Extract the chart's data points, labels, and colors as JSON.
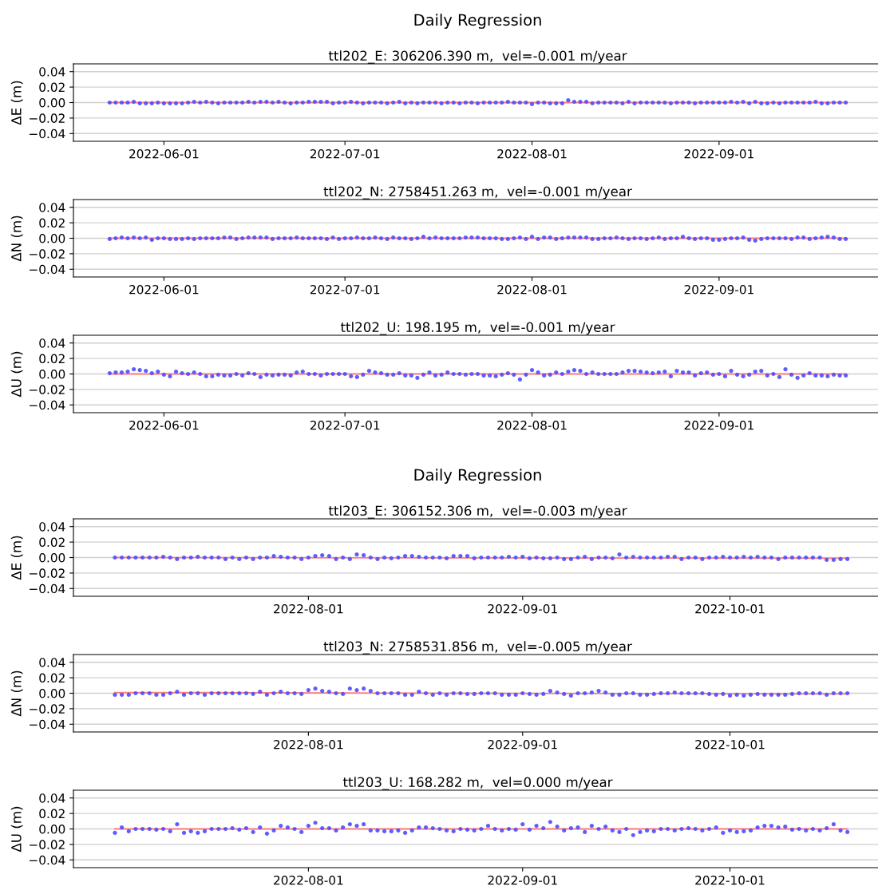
{
  "chart_data": [
    {
      "type": "scatter",
      "title": "Daily Regression",
      "subtitle": "ttl202_E: 306206.390 m,  vel=-0.001 m/year",
      "ylabel": "ΔE (m)",
      "grid": "y",
      "xlim": [
        "2022-05-17",
        "2022-09-28"
      ],
      "xticks": [
        "2022-06-01",
        "2022-07-01",
        "2022-08-01",
        "2022-09-01"
      ],
      "ylim": [
        -0.05,
        0.05
      ],
      "yticks": [
        {
          "value": -0.04,
          "label": "−0.04"
        },
        {
          "value": -0.02,
          "label": "−0.02"
        },
        {
          "value": 0,
          "label": "0.00"
        },
        {
          "value": 0.02,
          "label": "0.02"
        },
        {
          "value": 0.04,
          "label": "0.04"
        }
      ],
      "x": [
        "2022-05-23",
        "2022-05-24",
        "2022-05-25",
        "2022-05-26",
        "2022-05-27",
        "2022-05-28",
        "2022-05-29",
        "2022-05-30",
        "2022-05-31",
        "2022-06-01",
        "2022-06-02",
        "2022-06-03",
        "2022-06-04",
        "2022-06-05",
        "2022-06-06",
        "2022-06-07",
        "2022-06-08",
        "2022-06-09",
        "2022-06-10",
        "2022-06-11",
        "2022-06-12",
        "2022-06-13",
        "2022-06-14",
        "2022-06-15",
        "2022-06-16",
        "2022-06-17",
        "2022-06-18",
        "2022-06-19",
        "2022-06-20",
        "2022-06-21",
        "2022-06-22",
        "2022-06-23",
        "2022-06-24",
        "2022-06-25",
        "2022-06-26",
        "2022-06-27",
        "2022-06-28",
        "2022-06-29",
        "2022-06-30",
        "2022-07-01",
        "2022-07-02",
        "2022-07-03",
        "2022-07-04",
        "2022-07-05",
        "2022-07-06",
        "2022-07-07",
        "2022-07-08",
        "2022-07-09",
        "2022-07-10",
        "2022-07-11",
        "2022-07-12",
        "2022-07-13",
        "2022-07-14",
        "2022-07-15",
        "2022-07-16",
        "2022-07-17",
        "2022-07-18",
        "2022-07-19",
        "2022-07-20",
        "2022-07-21",
        "2022-07-22",
        "2022-07-23",
        "2022-07-24",
        "2022-07-25",
        "2022-07-26",
        "2022-07-27",
        "2022-07-28",
        "2022-07-29",
        "2022-07-30",
        "2022-07-31",
        "2022-08-01",
        "2022-08-02",
        "2022-08-03",
        "2022-08-04",
        "2022-08-05",
        "2022-08-06",
        "2022-08-07",
        "2022-08-08",
        "2022-08-09",
        "2022-08-10",
        "2022-08-11",
        "2022-08-12",
        "2022-08-13",
        "2022-08-14",
        "2022-08-15",
        "2022-08-16",
        "2022-08-17",
        "2022-08-18",
        "2022-08-19",
        "2022-08-20",
        "2022-08-21",
        "2022-08-22",
        "2022-08-23",
        "2022-08-24",
        "2022-08-25",
        "2022-08-26",
        "2022-08-27",
        "2022-08-28",
        "2022-08-29",
        "2022-08-30",
        "2022-08-31",
        "2022-09-01",
        "2022-09-02",
        "2022-09-03",
        "2022-09-04",
        "2022-09-05",
        "2022-09-06",
        "2022-09-07",
        "2022-09-08",
        "2022-09-09",
        "2022-09-10",
        "2022-09-11",
        "2022-09-12",
        "2022-09-13",
        "2022-09-14",
        "2022-09-15",
        "2022-09-16",
        "2022-09-17",
        "2022-09-18",
        "2022-09-19",
        "2022-09-20",
        "2022-09-21",
        "2022-09-22"
      ],
      "series": [
        {
          "type": "line",
          "color": "#ff7f7f",
          "x": [
            "2022-05-23",
            "2022-09-22"
          ],
          "values": [
            0,
            0
          ]
        },
        {
          "color": "#4d4dff",
          "marker": "circle",
          "values": [
            0,
            0,
            0,
            0,
            0.001,
            -0.001,
            -0.001,
            -0.001,
            0,
            -0.001,
            -0.001,
            -0.001,
            -0.001,
            0,
            0.001,
            0,
            0.001,
            0,
            -0.001,
            0,
            0,
            0,
            0,
            0.001,
            0,
            0.001,
            0.001,
            0,
            0.001,
            0,
            -0.001,
            0,
            0,
            0.001,
            0.001,
            0.001,
            0.001,
            -0.001,
            0,
            0,
            0.001,
            0,
            -0.001,
            0,
            0,
            0,
            -0.001,
            0,
            0.001,
            -0.001,
            0,
            -0.001,
            0,
            0,
            0,
            -0.001,
            0,
            0,
            -0.001,
            0,
            0,
            -0.001,
            0,
            0,
            0,
            0,
            0.001,
            0,
            0,
            0,
            -0.002,
            0,
            0,
            -0.001,
            -0.001,
            -0.001,
            0.003,
            0.001,
            0.001,
            0.001,
            -0.001,
            0,
            0,
            0,
            0,
            -0.001,
            0.001,
            -0.001,
            0,
            0,
            0,
            0,
            0,
            -0.001,
            0,
            0,
            0,
            -0.001,
            0,
            0,
            0,
            0,
            0,
            0.001,
            0,
            0.001,
            -0.001,
            0.001,
            -0.001,
            -0.001,
            0,
            -0.001,
            0,
            0,
            0,
            0,
            0,
            0.001,
            -0.001,
            -0.001,
            0,
            0,
            0
          ]
        }
      ]
    },
    {
      "type": "scatter",
      "subtitle": "ttl202_N: 2758451.263 m,  vel=-0.001 m/year",
      "ylabel": "ΔN (m)",
      "grid": "y",
      "xlim": [
        "2022-05-17",
        "2022-09-28"
      ],
      "xticks": [
        "2022-06-01",
        "2022-07-01",
        "2022-08-01",
        "2022-09-01"
      ],
      "ylim": [
        -0.05,
        0.05
      ],
      "yticks": [
        {
          "value": -0.04,
          "label": "−0.04"
        },
        {
          "value": -0.02,
          "label": "−0.02"
        },
        {
          "value": 0,
          "label": "0.00"
        },
        {
          "value": 0.02,
          "label": "0.02"
        },
        {
          "value": 0.04,
          "label": "0.04"
        }
      ],
      "x": [
        "2022-05-23",
        "2022-05-24",
        "2022-05-25",
        "2022-05-26",
        "2022-05-27",
        "2022-05-28",
        "2022-05-29",
        "2022-05-30",
        "2022-05-31",
        "2022-06-01",
        "2022-06-02",
        "2022-06-03",
        "2022-06-04",
        "2022-06-05",
        "2022-06-06",
        "2022-06-07",
        "2022-06-08",
        "2022-06-09",
        "2022-06-10",
        "2022-06-11",
        "2022-06-12",
        "2022-06-13",
        "2022-06-14",
        "2022-06-15",
        "2022-06-16",
        "2022-06-17",
        "2022-06-18",
        "2022-06-19",
        "2022-06-20",
        "2022-06-21",
        "2022-06-22",
        "2022-06-23",
        "2022-06-24",
        "2022-06-25",
        "2022-06-26",
        "2022-06-27",
        "2022-06-28",
        "2022-06-29",
        "2022-06-30",
        "2022-07-01",
        "2022-07-02",
        "2022-07-03",
        "2022-07-04",
        "2022-07-05",
        "2022-07-06",
        "2022-07-07",
        "2022-07-08",
        "2022-07-09",
        "2022-07-10",
        "2022-07-11",
        "2022-07-12",
        "2022-07-13",
        "2022-07-14",
        "2022-07-15",
        "2022-07-16",
        "2022-07-17",
        "2022-07-18",
        "2022-07-19",
        "2022-07-20",
        "2022-07-21",
        "2022-07-22",
        "2022-07-23",
        "2022-07-24",
        "2022-07-25",
        "2022-07-26",
        "2022-07-27",
        "2022-07-28",
        "2022-07-29",
        "2022-07-30",
        "2022-07-31",
        "2022-08-01",
        "2022-08-02",
        "2022-08-03",
        "2022-08-04",
        "2022-08-05",
        "2022-08-06",
        "2022-08-07",
        "2022-08-08",
        "2022-08-09",
        "2022-08-10",
        "2022-08-11",
        "2022-08-12",
        "2022-08-13",
        "2022-08-14",
        "2022-08-15",
        "2022-08-16",
        "2022-08-17",
        "2022-08-18",
        "2022-08-19",
        "2022-08-20",
        "2022-08-21",
        "2022-08-22",
        "2022-08-23",
        "2022-08-24",
        "2022-08-25",
        "2022-08-26",
        "2022-08-27",
        "2022-08-28",
        "2022-08-29",
        "2022-08-30",
        "2022-08-31",
        "2022-09-01",
        "2022-09-02",
        "2022-09-03",
        "2022-09-04",
        "2022-09-05",
        "2022-09-06",
        "2022-09-07",
        "2022-09-08",
        "2022-09-09",
        "2022-09-10",
        "2022-09-11",
        "2022-09-12",
        "2022-09-13",
        "2022-09-14",
        "2022-09-15",
        "2022-09-16",
        "2022-09-17",
        "2022-09-18",
        "2022-09-19",
        "2022-09-20",
        "2022-09-21",
        "2022-09-22"
      ],
      "series": [
        {
          "type": "line",
          "color": "#ff7f7f",
          "x": [
            "2022-05-23",
            "2022-09-22"
          ],
          "values": [
            0,
            0
          ]
        },
        {
          "color": "#4d4dff",
          "marker": "circle",
          "values": [
            -0.001,
            0,
            0.001,
            0,
            0.001,
            0,
            0.001,
            -0.002,
            0,
            0,
            -0.001,
            -0.001,
            -0.001,
            0,
            -0.001,
            0,
            0,
            0,
            0,
            0.001,
            0.001,
            -0.001,
            0,
            0.001,
            0.001,
            0.001,
            0.001,
            -0.001,
            0,
            0,
            0,
            0.001,
            0,
            0,
            0,
            0,
            -0.001,
            0.001,
            -0.001,
            0,
            0,
            0.001,
            0,
            0,
            0.001,
            0,
            -0.001,
            0.001,
            0,
            0,
            -0.001,
            0,
            0.002,
            0,
            0.001,
            0,
            0,
            0,
            0,
            0.001,
            0.001,
            0.001,
            0,
            0,
            0,
            -0.001,
            -0.001,
            0,
            0.001,
            -0.001,
            0.002,
            -0.001,
            0.001,
            0.001,
            -0.001,
            0,
            0.001,
            0.001,
            0.001,
            0.001,
            -0.001,
            -0.001,
            0,
            0,
            0.001,
            0,
            -0.001,
            0,
            0,
            -0.001,
            0,
            0.001,
            -0.001,
            0,
            0,
            0.002,
            0,
            -0.001,
            0,
            0,
            -0.002,
            -0.002,
            -0.001,
            0,
            0,
            0.001,
            -0.002,
            -0.003,
            -0.001,
            0,
            0,
            0,
            0,
            -0.001,
            0.001,
            0.001,
            -0.001,
            0,
            0.001,
            0.002,
            0.001,
            -0.001,
            -0.001
          ]
        }
      ]
    },
    {
      "type": "scatter",
      "subtitle": "ttl202_U: 198.195 m,  vel=-0.001 m/year",
      "ylabel": "ΔU (m)",
      "grid": "y",
      "xlim": [
        "2022-05-17",
        "2022-09-28"
      ],
      "xticks": [
        "2022-06-01",
        "2022-07-01",
        "2022-08-01",
        "2022-09-01"
      ],
      "ylim": [
        -0.05,
        0.05
      ],
      "yticks": [
        {
          "value": -0.04,
          "label": "−0.04"
        },
        {
          "value": -0.02,
          "label": "−0.02"
        },
        {
          "value": 0,
          "label": "0.00"
        },
        {
          "value": 0.02,
          "label": "0.02"
        },
        {
          "value": 0.04,
          "label": "0.04"
        }
      ],
      "x": [
        "2022-05-23",
        "2022-05-24",
        "2022-05-25",
        "2022-05-26",
        "2022-05-27",
        "2022-05-28",
        "2022-05-29",
        "2022-05-30",
        "2022-05-31",
        "2022-06-01",
        "2022-06-02",
        "2022-06-03",
        "2022-06-04",
        "2022-06-05",
        "2022-06-06",
        "2022-06-07",
        "2022-06-08",
        "2022-06-09",
        "2022-06-10",
        "2022-06-11",
        "2022-06-12",
        "2022-06-13",
        "2022-06-14",
        "2022-06-15",
        "2022-06-16",
        "2022-06-17",
        "2022-06-18",
        "2022-06-19",
        "2022-06-20",
        "2022-06-21",
        "2022-06-22",
        "2022-06-23",
        "2022-06-24",
        "2022-06-25",
        "2022-06-26",
        "2022-06-27",
        "2022-06-28",
        "2022-06-29",
        "2022-06-30",
        "2022-07-01",
        "2022-07-02",
        "2022-07-03",
        "2022-07-04",
        "2022-07-05",
        "2022-07-06",
        "2022-07-07",
        "2022-07-08",
        "2022-07-09",
        "2022-07-10",
        "2022-07-11",
        "2022-07-12",
        "2022-07-13",
        "2022-07-14",
        "2022-07-15",
        "2022-07-16",
        "2022-07-17",
        "2022-07-18",
        "2022-07-19",
        "2022-07-20",
        "2022-07-21",
        "2022-07-22",
        "2022-07-23",
        "2022-07-24",
        "2022-07-25",
        "2022-07-26",
        "2022-07-27",
        "2022-07-28",
        "2022-07-29",
        "2022-07-30",
        "2022-07-31",
        "2022-08-01",
        "2022-08-02",
        "2022-08-03",
        "2022-08-04",
        "2022-08-05",
        "2022-08-06",
        "2022-08-07",
        "2022-08-08",
        "2022-08-09",
        "2022-08-10",
        "2022-08-11",
        "2022-08-12",
        "2022-08-13",
        "2022-08-14",
        "2022-08-15",
        "2022-08-16",
        "2022-08-17",
        "2022-08-18",
        "2022-08-19",
        "2022-08-20",
        "2022-08-21",
        "2022-08-22",
        "2022-08-23",
        "2022-08-24",
        "2022-08-25",
        "2022-08-26",
        "2022-08-27",
        "2022-08-28",
        "2022-08-29",
        "2022-08-30",
        "2022-08-31",
        "2022-09-01",
        "2022-09-02",
        "2022-09-03",
        "2022-09-04",
        "2022-09-05",
        "2022-09-06",
        "2022-09-07",
        "2022-09-08",
        "2022-09-09",
        "2022-09-10",
        "2022-09-11",
        "2022-09-12",
        "2022-09-13",
        "2022-09-14",
        "2022-09-15",
        "2022-09-16",
        "2022-09-17",
        "2022-09-18",
        "2022-09-19",
        "2022-09-20",
        "2022-09-21",
        "2022-09-22"
      ],
      "series": [
        {
          "type": "line",
          "color": "#ff7f7f",
          "x": [
            "2022-05-23",
            "2022-09-22"
          ],
          "values": [
            0,
            0
          ]
        },
        {
          "color": "#4d4dff",
          "marker": "circle",
          "values": [
            0.001,
            0.002,
            0.002,
            0.003,
            0.006,
            0.005,
            0.004,
            0.001,
            0.003,
            -0.001,
            -0.003,
            0.003,
            0.001,
            0,
            0.002,
            0,
            -0.003,
            -0.003,
            -0.001,
            -0.002,
            -0.002,
            0,
            -0.002,
            0.001,
            0,
            -0.004,
            -0.001,
            -0.002,
            -0.001,
            -0.001,
            -0.002,
            0.002,
            0.003,
            0,
            0,
            -0.002,
            0,
            0,
            0,
            0,
            -0.003,
            -0.004,
            -0.001,
            0.004,
            0.002,
            0.001,
            -0.001,
            -0.001,
            0.001,
            -0.002,
            -0.002,
            -0.005,
            -0.001,
            0.002,
            -0.002,
            -0.001,
            0.002,
            0,
            0,
            -0.001,
            0,
            0,
            -0.002,
            -0.002,
            -0.003,
            -0.001,
            0.001,
            -0.001,
            -0.007,
            -0.001,
            0.005,
            0.002,
            -0.002,
            -0.001,
            0.002,
            0,
            0.003,
            0.005,
            0.004,
            0,
            0.002,
            0,
            0,
            0,
            0,
            0.002,
            0.004,
            0.004,
            0.003,
            0.002,
            0.001,
            0.002,
            0.003,
            -0.003,
            0.004,
            0.002,
            0.002,
            -0.002,
            0.001,
            0.002,
            -0.001,
            0,
            -0.003,
            0.004,
            -0.001,
            -0.003,
            -0.001,
            0.003,
            0.004,
            -0.002,
            0,
            -0.004,
            0.006,
            -0.001,
            -0.005,
            -0.002,
            0.001,
            -0.002,
            -0.002,
            -0.003,
            -0.001,
            -0.002,
            -0.002
          ]
        }
      ]
    },
    {
      "type": "scatter",
      "title": "Daily Regression",
      "subtitle": "ttl203_E: 306152.306 m,  vel=-0.003 m/year",
      "ylabel": "ΔE (m)",
      "grid": "y",
      "xlim": [
        "2022-06-28",
        "2022-10-23"
      ],
      "xticks": [
        "2022-08-01",
        "2022-09-01",
        "2022-10-01"
      ],
      "ylim": [
        -0.05,
        0.05
      ],
      "yticks": [
        {
          "value": -0.04,
          "label": "−0.04"
        },
        {
          "value": -0.02,
          "label": "−0.02"
        },
        {
          "value": 0,
          "label": "0.00"
        },
        {
          "value": 0.02,
          "label": "0.02"
        },
        {
          "value": 0.04,
          "label": "0.04"
        }
      ],
      "x": [
        "2022-07-04",
        "2022-07-05",
        "2022-07-06",
        "2022-07-07",
        "2022-07-08",
        "2022-07-09",
        "2022-07-10",
        "2022-07-11",
        "2022-07-12",
        "2022-07-13",
        "2022-07-14",
        "2022-07-15",
        "2022-07-16",
        "2022-07-17",
        "2022-07-18",
        "2022-07-19",
        "2022-07-20",
        "2022-07-21",
        "2022-07-22",
        "2022-07-23",
        "2022-07-24",
        "2022-07-25",
        "2022-07-26",
        "2022-07-27",
        "2022-07-28",
        "2022-07-29",
        "2022-07-30",
        "2022-07-31",
        "2022-08-01",
        "2022-08-02",
        "2022-08-03",
        "2022-08-04",
        "2022-08-05",
        "2022-08-06",
        "2022-08-07",
        "2022-08-08",
        "2022-08-09",
        "2022-08-10",
        "2022-08-11",
        "2022-08-12",
        "2022-08-13",
        "2022-08-14",
        "2022-08-15",
        "2022-08-16",
        "2022-08-17",
        "2022-08-18",
        "2022-08-19",
        "2022-08-20",
        "2022-08-21",
        "2022-08-22",
        "2022-08-23",
        "2022-08-24",
        "2022-08-25",
        "2022-08-26",
        "2022-08-27",
        "2022-08-28",
        "2022-08-29",
        "2022-08-30",
        "2022-08-31",
        "2022-09-01",
        "2022-09-02",
        "2022-09-03",
        "2022-09-04",
        "2022-09-05",
        "2022-09-06",
        "2022-09-07",
        "2022-09-08",
        "2022-09-09",
        "2022-09-10",
        "2022-09-11",
        "2022-09-12",
        "2022-09-13",
        "2022-09-14",
        "2022-09-15",
        "2022-09-16",
        "2022-09-17",
        "2022-09-18",
        "2022-09-19",
        "2022-09-20",
        "2022-09-21",
        "2022-09-22",
        "2022-09-23",
        "2022-09-24",
        "2022-09-25",
        "2022-09-26",
        "2022-09-27",
        "2022-09-28",
        "2022-09-29",
        "2022-09-30",
        "2022-10-01",
        "2022-10-02",
        "2022-10-03",
        "2022-10-04",
        "2022-10-05",
        "2022-10-06",
        "2022-10-07",
        "2022-10-08",
        "2022-10-09",
        "2022-10-10",
        "2022-10-11",
        "2022-10-12",
        "2022-10-13",
        "2022-10-14",
        "2022-10-15",
        "2022-10-16",
        "2022-10-17",
        "2022-10-18"
      ],
      "series": [
        {
          "type": "line",
          "color": "#ff7f7f",
          "x": [
            "2022-07-04",
            "2022-10-18"
          ],
          "values": [
            0,
            -0.001
          ]
        },
        {
          "color": "#4d4dff",
          "marker": "circle",
          "values": [
            0,
            0,
            0,
            0,
            0,
            0,
            0,
            0.001,
            0,
            -0.002,
            0,
            0,
            0.001,
            0,
            0,
            0,
            -0.002,
            0,
            -0.002,
            0,
            -0.002,
            0,
            0,
            0.002,
            0.001,
            0,
            0,
            -0.002,
            0,
            0.002,
            0.003,
            0.002,
            -0.002,
            0,
            -0.002,
            0.004,
            0.003,
            0,
            -0.002,
            0,
            -0.001,
            0,
            0.002,
            0.002,
            0.001,
            0,
            0,
            0,
            -0.001,
            0.002,
            0.002,
            0.002,
            -0.001,
            0,
            0,
            0,
            0,
            0.001,
            0,
            0.001,
            -0.001,
            0,
            -0.001,
            -0.001,
            0,
            -0.002,
            -0.002,
            0,
            0.001,
            -0.002,
            0,
            0,
            -0.001,
            0.004,
            0,
            0.001,
            0,
            0,
            0,
            0,
            0.001,
            0.001,
            -0.002,
            0,
            0,
            -0.002,
            0,
            0,
            0.001,
            0,
            0,
            0.001,
            0,
            0.001,
            0,
            0,
            -0.002,
            0,
            0,
            0,
            0,
            0,
            0,
            -0.003,
            -0.003,
            -0.002,
            -0.002
          ]
        }
      ]
    },
    {
      "type": "scatter",
      "subtitle": "ttl203_N: 2758531.856 m,  vel=-0.005 m/year",
      "ylabel": "ΔN (m)",
      "grid": "y",
      "xlim": [
        "2022-06-28",
        "2022-10-23"
      ],
      "xticks": [
        "2022-08-01",
        "2022-09-01",
        "2022-10-01"
      ],
      "ylim": [
        -0.05,
        0.05
      ],
      "yticks": [
        {
          "value": -0.04,
          "label": "−0.04"
        },
        {
          "value": -0.02,
          "label": "−0.02"
        },
        {
          "value": 0,
          "label": "0.00"
        },
        {
          "value": 0.02,
          "label": "0.02"
        },
        {
          "value": 0.04,
          "label": "0.04"
        }
      ],
      "x": [
        "2022-07-04",
        "2022-07-05",
        "2022-07-06",
        "2022-07-07",
        "2022-07-08",
        "2022-07-09",
        "2022-07-10",
        "2022-07-11",
        "2022-07-12",
        "2022-07-13",
        "2022-07-14",
        "2022-07-15",
        "2022-07-16",
        "2022-07-17",
        "2022-07-18",
        "2022-07-19",
        "2022-07-20",
        "2022-07-21",
        "2022-07-22",
        "2022-07-23",
        "2022-07-24",
        "2022-07-25",
        "2022-07-26",
        "2022-07-27",
        "2022-07-28",
        "2022-07-29",
        "2022-07-30",
        "2022-07-31",
        "2022-08-01",
        "2022-08-02",
        "2022-08-03",
        "2022-08-04",
        "2022-08-05",
        "2022-08-06",
        "2022-08-07",
        "2022-08-08",
        "2022-08-09",
        "2022-08-10",
        "2022-08-11",
        "2022-08-12",
        "2022-08-13",
        "2022-08-14",
        "2022-08-15",
        "2022-08-16",
        "2022-08-17",
        "2022-08-18",
        "2022-08-19",
        "2022-08-20",
        "2022-08-21",
        "2022-08-22",
        "2022-08-23",
        "2022-08-24",
        "2022-08-25",
        "2022-08-26",
        "2022-08-27",
        "2022-08-28",
        "2022-08-29",
        "2022-08-30",
        "2022-08-31",
        "2022-09-01",
        "2022-09-02",
        "2022-09-03",
        "2022-09-04",
        "2022-09-05",
        "2022-09-06",
        "2022-09-07",
        "2022-09-08",
        "2022-09-09",
        "2022-09-10",
        "2022-09-11",
        "2022-09-12",
        "2022-09-13",
        "2022-09-14",
        "2022-09-15",
        "2022-09-16",
        "2022-09-17",
        "2022-09-18",
        "2022-09-19",
        "2022-09-20",
        "2022-09-21",
        "2022-09-22",
        "2022-09-23",
        "2022-09-24",
        "2022-09-25",
        "2022-09-26",
        "2022-09-27",
        "2022-09-28",
        "2022-09-29",
        "2022-09-30",
        "2022-10-01",
        "2022-10-02",
        "2022-10-03",
        "2022-10-04",
        "2022-10-05",
        "2022-10-06",
        "2022-10-07",
        "2022-10-08",
        "2022-10-09",
        "2022-10-10",
        "2022-10-11",
        "2022-10-12",
        "2022-10-13",
        "2022-10-14",
        "2022-10-15",
        "2022-10-16",
        "2022-10-17",
        "2022-10-18"
      ],
      "series": [
        {
          "type": "line",
          "color": "#ff7f7f",
          "x": [
            "2022-07-04",
            "2022-10-18"
          ],
          "values": [
            0.001,
            -0.001
          ]
        },
        {
          "color": "#4d4dff",
          "marker": "circle",
          "values": [
            -0.002,
            -0.002,
            -0.002,
            0,
            0,
            0,
            -0.002,
            -0.002,
            0,
            0.002,
            -0.002,
            0,
            0,
            -0.002,
            0,
            0,
            0,
            0,
            0,
            0,
            -0.001,
            0.002,
            -0.002,
            0,
            0.002,
            0,
            0,
            -0.001,
            0.004,
            0.006,
            0.003,
            0.002,
            0,
            -0.001,
            0.006,
            0.004,
            0.006,
            0.003,
            0,
            0,
            0,
            0,
            -0.002,
            -0.002,
            0.002,
            0,
            -0.002,
            0,
            -0.002,
            0,
            0,
            -0.001,
            -0.001,
            0,
            0,
            0,
            -0.002,
            -0.002,
            -0.002,
            0,
            -0.001,
            -0.002,
            -0.001,
            0.003,
            0.001,
            -0.001,
            -0.003,
            0,
            0,
            0.001,
            0.003,
            0.001,
            -0.002,
            -0.002,
            0,
            0,
            -0.002,
            -0.002,
            -0.001,
            0,
            0,
            0.001,
            0,
            0,
            0,
            0,
            -0.001,
            -0.002,
            -0.001,
            -0.003,
            -0.002,
            -0.003,
            -0.002,
            -0.001,
            -0.002,
            -0.002,
            -0.002,
            -0.002,
            -0.001,
            0,
            0,
            0,
            0,
            -0.002,
            0,
            0,
            0
          ]
        }
      ]
    },
    {
      "type": "scatter",
      "subtitle": "ttl203_U: 168.282 m,  vel=0.000 m/year",
      "ylabel": "ΔU (m)",
      "grid": "y",
      "xlim": [
        "2022-06-28",
        "2022-10-23"
      ],
      "xticks": [
        "2022-08-01",
        "2022-09-01",
        "2022-10-01"
      ],
      "ylim": [
        -0.05,
        0.05
      ],
      "yticks": [
        {
          "value": -0.04,
          "label": "−0.04"
        },
        {
          "value": -0.02,
          "label": "−0.02"
        },
        {
          "value": 0,
          "label": "0.00"
        },
        {
          "value": 0.02,
          "label": "0.02"
        },
        {
          "value": 0.04,
          "label": "0.04"
        }
      ],
      "x": [
        "2022-07-04",
        "2022-07-05",
        "2022-07-06",
        "2022-07-07",
        "2022-07-08",
        "2022-07-09",
        "2022-07-10",
        "2022-07-11",
        "2022-07-12",
        "2022-07-13",
        "2022-07-14",
        "2022-07-15",
        "2022-07-16",
        "2022-07-17",
        "2022-07-18",
        "2022-07-19",
        "2022-07-20",
        "2022-07-21",
        "2022-07-22",
        "2022-07-23",
        "2022-07-24",
        "2022-07-25",
        "2022-07-26",
        "2022-07-27",
        "2022-07-28",
        "2022-07-29",
        "2022-07-30",
        "2022-07-31",
        "2022-08-01",
        "2022-08-02",
        "2022-08-03",
        "2022-08-04",
        "2022-08-05",
        "2022-08-06",
        "2022-08-07",
        "2022-08-08",
        "2022-08-09",
        "2022-08-10",
        "2022-08-11",
        "2022-08-12",
        "2022-08-13",
        "2022-08-14",
        "2022-08-15",
        "2022-08-16",
        "2022-08-17",
        "2022-08-18",
        "2022-08-19",
        "2022-08-20",
        "2022-08-21",
        "2022-08-22",
        "2022-08-23",
        "2022-08-24",
        "2022-08-25",
        "2022-08-26",
        "2022-08-27",
        "2022-08-28",
        "2022-08-29",
        "2022-08-30",
        "2022-08-31",
        "2022-09-01",
        "2022-09-02",
        "2022-09-03",
        "2022-09-04",
        "2022-09-05",
        "2022-09-06",
        "2022-09-07",
        "2022-09-08",
        "2022-09-09",
        "2022-09-10",
        "2022-09-11",
        "2022-09-12",
        "2022-09-13",
        "2022-09-14",
        "2022-09-15",
        "2022-09-16",
        "2022-09-17",
        "2022-09-18",
        "2022-09-19",
        "2022-09-20",
        "2022-09-21",
        "2022-09-22",
        "2022-09-23",
        "2022-09-24",
        "2022-09-25",
        "2022-09-26",
        "2022-09-27",
        "2022-09-28",
        "2022-09-29",
        "2022-09-30",
        "2022-10-01",
        "2022-10-02",
        "2022-10-03",
        "2022-10-04",
        "2022-10-05",
        "2022-10-06",
        "2022-10-07",
        "2022-10-08",
        "2022-10-09",
        "2022-10-10",
        "2022-10-11",
        "2022-10-12",
        "2022-10-13",
        "2022-10-14",
        "2022-10-15",
        "2022-10-16",
        "2022-10-17",
        "2022-10-18"
      ],
      "series": [
        {
          "type": "line",
          "color": "#ff7f7f",
          "x": [
            "2022-07-04",
            "2022-10-18"
          ],
          "values": [
            0,
            0
          ]
        },
        {
          "color": "#4d4dff",
          "marker": "circle",
          "values": [
            -0.005,
            0.002,
            -0.003,
            0,
            0,
            0,
            -0.001,
            0,
            -0.003,
            0.006,
            -0.005,
            -0.003,
            -0.005,
            -0.003,
            0,
            0,
            0,
            0.001,
            -0.001,
            0.001,
            -0.004,
            0.002,
            -0.006,
            -0.002,
            0.004,
            0.002,
            0,
            -0.004,
            0.004,
            0.008,
            0.001,
            0.001,
            -0.002,
            0.002,
            0.006,
            0.004,
            0.006,
            -0.002,
            -0.002,
            -0.003,
            -0.003,
            -0.002,
            -0.005,
            -0.002,
            0.002,
            0.002,
            0.001,
            0,
            -0.002,
            -0.003,
            0,
            -0.001,
            -0.002,
            0,
            0.004,
            0,
            -0.002,
            0,
            -0.001,
            0.006,
            -0.001,
            0.004,
            0.001,
            0.009,
            0.003,
            -0.002,
            0.001,
            0.002,
            -0.004,
            0.004,
            0,
            0.003,
            -0.002,
            -0.004,
            0,
            -0.008,
            -0.004,
            -0.002,
            -0.003,
            0,
            0,
            -0.002,
            0,
            0.001,
            0,
            -0.002,
            0,
            0.002,
            -0.005,
            -0.002,
            -0.004,
            -0.003,
            -0.002,
            0.002,
            0.004,
            0.004,
            0.002,
            0.003,
            -0.001,
            0,
            -0.002,
            0,
            -0.002,
            0.001,
            0.006,
            -0.002,
            -0.004
          ]
        }
      ]
    }
  ]
}
